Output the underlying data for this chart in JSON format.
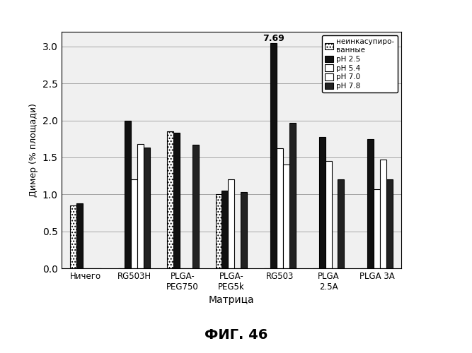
{
  "categories": [
    "Ничего",
    "RG503H",
    "PLGA-\nPEG750",
    "PLGA-\nPEG5k",
    "RG503",
    "PLGA\n2.5A",
    "PLGA 3A"
  ],
  "series_names": [
    "неинкасупиро-\nванные",
    "pH 2.5",
    "pH 5.4",
    "pH 7.0",
    "pH 7.8"
  ],
  "series": {
    "неинкасупиро-\nванные": [
      0.85,
      0.0,
      1.85,
      1.0,
      0.0,
      0.0,
      0.0
    ],
    "pH 2.5": [
      0.88,
      2.0,
      1.83,
      1.05,
      3.05,
      1.78,
      1.75
    ],
    "pH 5.4": [
      0.0,
      1.2,
      0.0,
      1.2,
      1.62,
      1.45,
      1.07
    ],
    "pH 7.0": [
      0.0,
      1.68,
      0.0,
      0.0,
      1.4,
      0.0,
      1.47
    ],
    "pH 7.8": [
      0.0,
      1.63,
      1.67,
      1.03,
      1.97,
      1.2,
      1.2
    ]
  },
  "colors": {
    "неинкасупиро-\nванные": "#ffffff",
    "pH 2.5": "#111111",
    "pH 5.4": "#ffffff",
    "pH 7.0": "#ffffff",
    "pH 7.8": "#222222"
  },
  "edgecolors": {
    "неинкасупиро-\nванные": "#000000",
    "pH 2.5": "#000000",
    "pH 5.4": "#000000",
    "pH 7.0": "#000000",
    "pH 7.8": "#000000"
  },
  "hatches": {
    "неинкасупиро-\nванные": "....",
    "pH 2.5": "",
    "pH 5.4": "",
    "pH 7.0": "",
    "pH 7.8": ""
  },
  "legend_display": [
    "неинкасупиро-\nванные",
    "pH 2.5",
    "pH 5.4",
    "pH 7.0",
    "pH 7.8"
  ],
  "annotation_text": "7.69",
  "annotation_cat_idx": 4,
  "annotation_series": "pH 2.5",
  "ylabel": "Димер (% площади)",
  "xlabel": "Матрица",
  "ylim": [
    0,
    3.2
  ],
  "yticks": [
    0,
    0.5,
    1,
    1.5,
    2,
    2.5,
    3
  ],
  "bar_width": 0.13,
  "figsize": [
    6.67,
    5.0
  ],
  "dpi": 100,
  "figure_label": "ФИГ. 46",
  "bg_color": "#f0f0f0"
}
